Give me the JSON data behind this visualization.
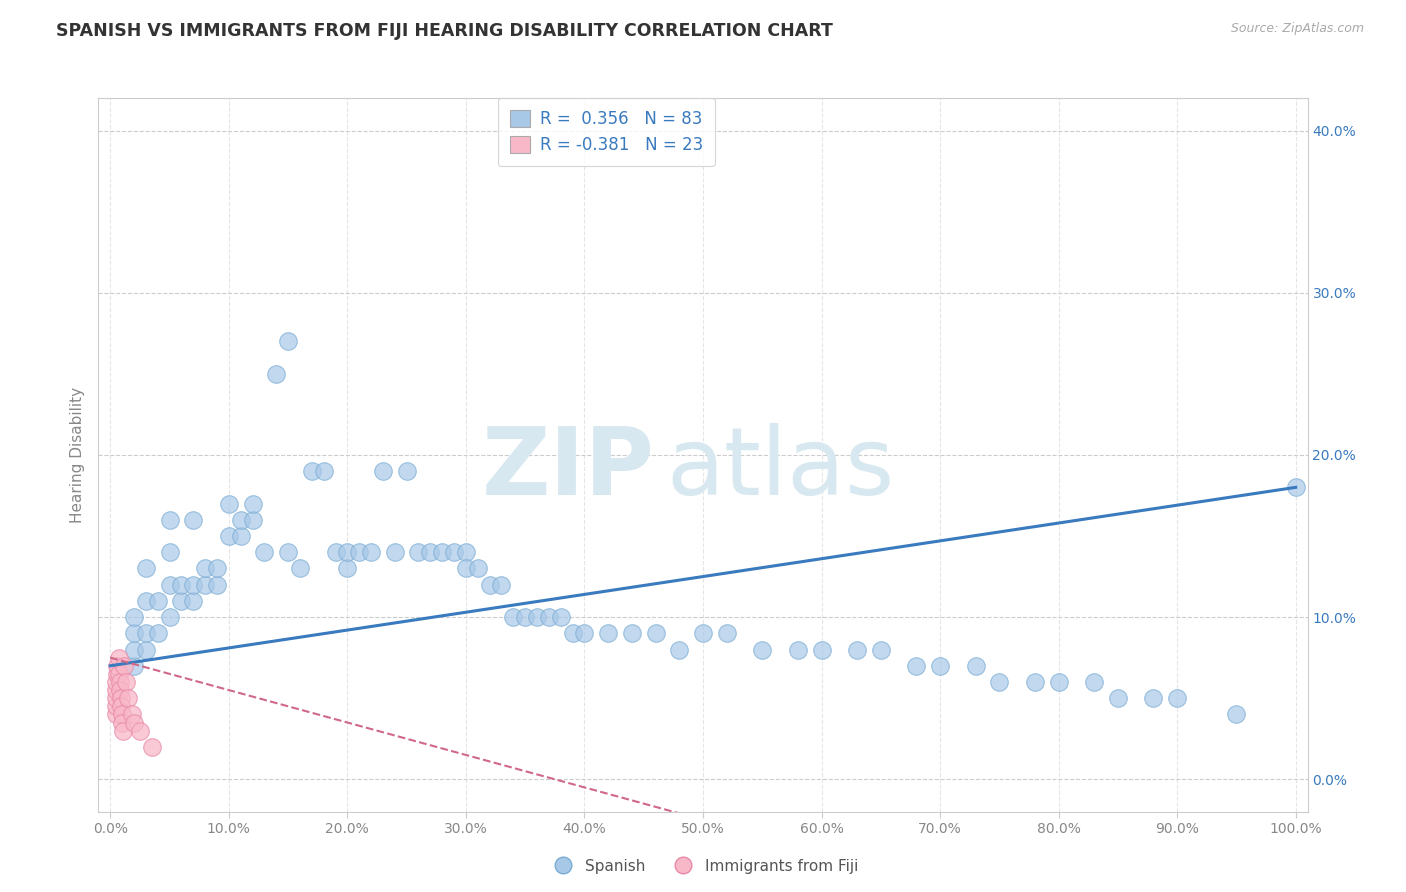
{
  "title": "SPANISH VS IMMIGRANTS FROM FIJI HEARING DISABILITY CORRELATION CHART",
  "source": "Source: ZipAtlas.com",
  "ylabel": "Hearing Disability",
  "legend_blue_label": "Spanish",
  "legend_pink_label": "Immigrants from Fiji",
  "r_blue": 0.356,
  "n_blue": 83,
  "r_pink": -0.381,
  "n_pink": 23,
  "xlim": [
    -1,
    101
  ],
  "ylim": [
    -2,
    42
  ],
  "xticks": [
    0,
    10,
    20,
    30,
    40,
    50,
    60,
    70,
    80,
    90,
    100
  ],
  "yticks": [
    0,
    10,
    20,
    30,
    40
  ],
  "blue_color": "#a8c8e8",
  "blue_edge_color": "#7aacd4",
  "pink_color": "#f8b8c8",
  "pink_edge_color": "#e888a8",
  "trend_blue_color": "#3a7abf",
  "trend_pink_color": "#d06888",
  "background_color": "#ffffff",
  "grid_color": "#cccccc",
  "tick_color": "#888888",
  "right_tick_color": "#3a7abf",
  "title_color": "#333333",
  "ylabel_color": "#888888",
  "watermark_color": "#d8e8f0",
  "watermark": "ZIPatlas",
  "title_fontsize": 12.5,
  "tick_fontsize": 10,
  "ylabel_fontsize": 11,
  "blue_x": [
    2,
    2,
    2,
    2,
    3,
    3,
    3,
    3,
    4,
    4,
    5,
    5,
    5,
    5,
    6,
    6,
    7,
    7,
    7,
    8,
    8,
    9,
    9,
    10,
    10,
    11,
    11,
    12,
    12,
    13,
    14,
    15,
    15,
    16,
    17,
    18,
    19,
    20,
    20,
    21,
    22,
    23,
    24,
    25,
    26,
    27,
    28,
    29,
    30,
    30,
    31,
    32,
    33,
    34,
    35,
    36,
    37,
    38,
    39,
    40,
    42,
    44,
    46,
    48,
    50,
    52,
    55,
    58,
    60,
    63,
    65,
    68,
    70,
    73,
    75,
    78,
    80,
    83,
    85,
    88,
    90,
    95,
    100
  ],
  "blue_y": [
    7,
    8,
    9,
    10,
    8,
    9,
    11,
    13,
    9,
    11,
    10,
    12,
    14,
    16,
    11,
    12,
    11,
    12,
    16,
    12,
    13,
    12,
    13,
    15,
    17,
    15,
    16,
    16,
    17,
    14,
    25,
    27,
    14,
    13,
    19,
    19,
    14,
    13,
    14,
    14,
    14,
    19,
    14,
    19,
    14,
    14,
    14,
    14,
    14,
    13,
    13,
    12,
    12,
    10,
    10,
    10,
    10,
    10,
    9,
    9,
    9,
    9,
    9,
    8,
    9,
    9,
    8,
    8,
    8,
    8,
    8,
    7,
    7,
    7,
    6,
    6,
    6,
    6,
    5,
    5,
    5,
    4,
    18
  ],
  "pink_x": [
    0.5,
    0.5,
    0.5,
    0.5,
    0.5,
    0.6,
    0.6,
    0.7,
    0.7,
    0.8,
    0.8,
    0.9,
    0.9,
    1.0,
    1.0,
    1.1,
    1.2,
    1.3,
    1.5,
    1.8,
    2.0,
    2.5,
    3.5
  ],
  "pink_y": [
    4,
    4.5,
    5,
    5.5,
    6,
    6.5,
    7,
    7.5,
    6.5,
    6,
    5.5,
    5,
    4.5,
    4,
    3.5,
    3,
    7,
    6,
    5,
    4,
    3.5,
    3,
    2
  ],
  "blue_trend_x0": 0,
  "blue_trend_x1": 100,
  "blue_trend_y0": 7.0,
  "blue_trend_y1": 18.0,
  "pink_trend_x0": 0,
  "pink_trend_x1": 50,
  "pink_trend_y0": 7.5,
  "pink_trend_y1": -2.5
}
